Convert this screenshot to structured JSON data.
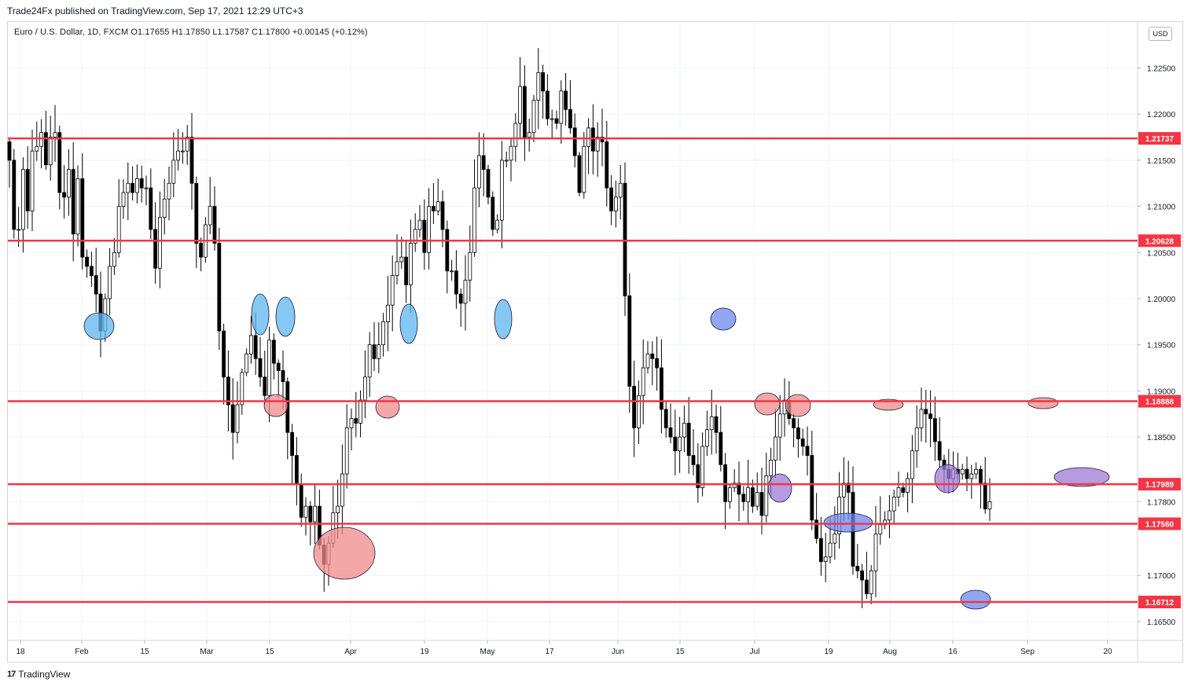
{
  "header": {
    "published_by": "Trade24Fx published on TradingView.com, Sep 17, 2021 12:29 UTC+3",
    "legend": "Euro / U.S. Dollar, 1D, FXCM  O1.17655  H1.17850  L1.17587  C1.17800  +0.00145 (+0.12%)",
    "currency_button": "USD"
  },
  "footer": {
    "brand": "TradingView",
    "logo_icon": "tradingview-logo-icon"
  },
  "colors": {
    "level_line": "#f23645",
    "bull_body": "#ffffff",
    "bear_body": "#000000",
    "grid": "#f0f3fa",
    "ellipse_blue_light": "#5eb5f0",
    "ellipse_blue": "#6b88ee",
    "ellipse_red": "#f08a8a",
    "ellipse_purple": "#9c7ad4"
  },
  "chart_data": {
    "type": "candlestick",
    "title": "Euro / U.S. Dollar, 1D, FXCM",
    "ylim": [
      1.1625,
      1.2305
    ],
    "y_ticks": [
      "1.22500",
      "1.22000",
      "1.21500",
      "1.21000",
      "1.20500",
      "1.20000",
      "1.19500",
      "1.19000",
      "1.18500",
      "1.17800",
      "1.17000",
      "1.16500"
    ],
    "x_ticks": [
      "18",
      "Feb",
      "15",
      "Mar",
      "15",
      "Apr",
      "19",
      "May",
      "17",
      "Jun",
      "15",
      "Jul",
      "19",
      "Aug",
      "16",
      "Sep",
      "20"
    ],
    "levels": [
      "1.21737",
      "1.20628",
      "1.18888",
      "1.17989",
      "1.17560",
      "1.16712"
    ],
    "grid": true,
    "closes": [
      1.215,
      1.2075,
      1.2075,
      1.214,
      1.2095,
      1.216,
      1.2165,
      1.218,
      1.2145,
      1.2175,
      1.218,
      1.2115,
      1.211,
      1.214,
      1.207,
      1.213,
      1.2045,
      1.2035,
      1.2025,
      1.2005,
      1.1965,
      1.2,
      1.2035,
      1.205,
      1.21,
      1.2115,
      1.2125,
      1.2115,
      1.213,
      1.212,
      1.212,
      1.2075,
      1.2033,
      1.2088,
      1.2108,
      1.2125,
      1.215,
      1.216,
      1.216,
      1.2175,
      1.2125,
      1.206,
      1.2045,
      1.208,
      1.21,
      1.206,
      1.1965,
      1.1915,
      1.1885,
      1.1855,
      1.1885,
      1.192,
      1.194,
      1.196,
      1.1935,
      1.1915,
      1.1895,
      1.1955,
      1.193,
      1.1922,
      1.191,
      1.1855,
      1.183,
      1.1799,
      1.1763,
      1.1775,
      1.1758,
      1.1775,
      1.1733,
      1.1712,
      1.1735,
      1.1768,
      1.1775,
      1.181,
      1.186,
      1.187,
      1.1865,
      1.189,
      1.1915,
      1.195,
      1.1935,
      1.195,
      1.1975,
      1.1993,
      1.2025,
      1.204,
      1.2045,
      1.2015,
      1.206,
      1.2075,
      1.2085,
      1.205,
      1.21,
      1.2095,
      1.2105,
      1.2075,
      1.203,
      1.203,
      1.2005,
      1.1995,
      1.202,
      1.205,
      1.212,
      1.2155,
      1.214,
      1.211,
      1.2075,
      1.2085,
      1.215,
      1.215,
      1.2165,
      1.219,
      1.223,
      1.2175,
      1.218,
      1.2215,
      1.2245,
      1.2225,
      1.2195,
      1.2195,
      1.219,
      1.2225,
      1.2205,
      1.2185,
      1.2155,
      1.2115,
      1.2165,
      1.2185,
      1.216,
      1.2175,
      1.217,
      1.212,
      1.2095,
      1.211,
      1.2125,
      1.2003,
      1.1905,
      1.186,
      1.1895,
      1.1925,
      1.194,
      1.1935,
      1.1925,
      1.188,
      1.186,
      1.185,
      1.1835,
      1.185,
      1.1865,
      1.183,
      1.182,
      1.1795,
      1.184,
      1.1858,
      1.1872,
      1.1855,
      1.182,
      1.178,
      1.1795,
      1.18,
      1.1788,
      1.178,
      1.1795,
      1.1775,
      1.179,
      1.1765,
      1.1808,
      1.1825,
      1.185,
      1.1875,
      1.189,
      1.187,
      1.186,
      1.1848,
      1.184,
      1.183,
      1.176,
      1.174,
      1.1715,
      1.172,
      1.1735,
      1.1745,
      1.1785,
      1.18,
      1.179,
      1.171,
      1.1705,
      1.1695,
      1.168,
      1.1705,
      1.1745,
      1.1755,
      1.176,
      1.177,
      1.1785,
      1.1795,
      1.179,
      1.1805,
      1.1835,
      1.186,
      1.188,
      1.1875,
      1.187,
      1.1845,
      1.1825,
      1.1815,
      1.1805,
      1.1815,
      1.181,
      1.1815,
      1.1805,
      1.181,
      1.1815,
      1.18,
      1.1772,
      1.178
    ],
    "annotations": [
      {
        "shape": "ellipse",
        "color": "blue-light",
        "date": "2021-02-05",
        "price": 1.197
      },
      {
        "shape": "ellipse",
        "color": "blue-light",
        "date": "2021-03-12",
        "price": 1.1985
      },
      {
        "shape": "ellipse",
        "color": "blue-light",
        "date": "2021-03-17",
        "price": 1.1985
      },
      {
        "shape": "ellipse",
        "color": "red",
        "date": "2021-03-18",
        "price": 1.188
      },
      {
        "shape": "ellipse",
        "color": "red",
        "date": "2021-03-31",
        "price": 1.1725
      },
      {
        "shape": "ellipse",
        "color": "red",
        "date": "2021-04-09",
        "price": 1.188
      },
      {
        "shape": "ellipse",
        "color": "blue-light",
        "date": "2021-04-15",
        "price": 1.197
      },
      {
        "shape": "ellipse",
        "color": "blue-light",
        "date": "2021-05-04",
        "price": 1.1975
      },
      {
        "shape": "ellipse",
        "color": "blue",
        "date": "2021-06-25",
        "price": 1.1975
      },
      {
        "shape": "ellipse",
        "color": "red",
        "date": "2021-07-01",
        "price": 1.1885
      },
      {
        "shape": "ellipse",
        "color": "purple",
        "date": "2021-07-05",
        "price": 1.179
      },
      {
        "shape": "ellipse",
        "color": "red",
        "date": "2021-07-08",
        "price": 1.1885
      },
      {
        "shape": "ellipse",
        "color": "blue",
        "date": "2021-07-23",
        "price": 1.176
      },
      {
        "shape": "ellipse",
        "color": "red",
        "date": "2021-07-29",
        "price": 1.1885
      },
      {
        "shape": "ellipse",
        "color": "purple",
        "date": "2021-08-13",
        "price": 1.18
      },
      {
        "shape": "ellipse",
        "color": "blue",
        "date": "2021-08-19",
        "price": 1.167
      },
      {
        "shape": "ellipse",
        "color": "red",
        "date": "2021-09-03",
        "price": 1.1885
      },
      {
        "shape": "ellipse",
        "color": "purple",
        "date": "2021-09-14",
        "price": 1.181
      }
    ]
  }
}
